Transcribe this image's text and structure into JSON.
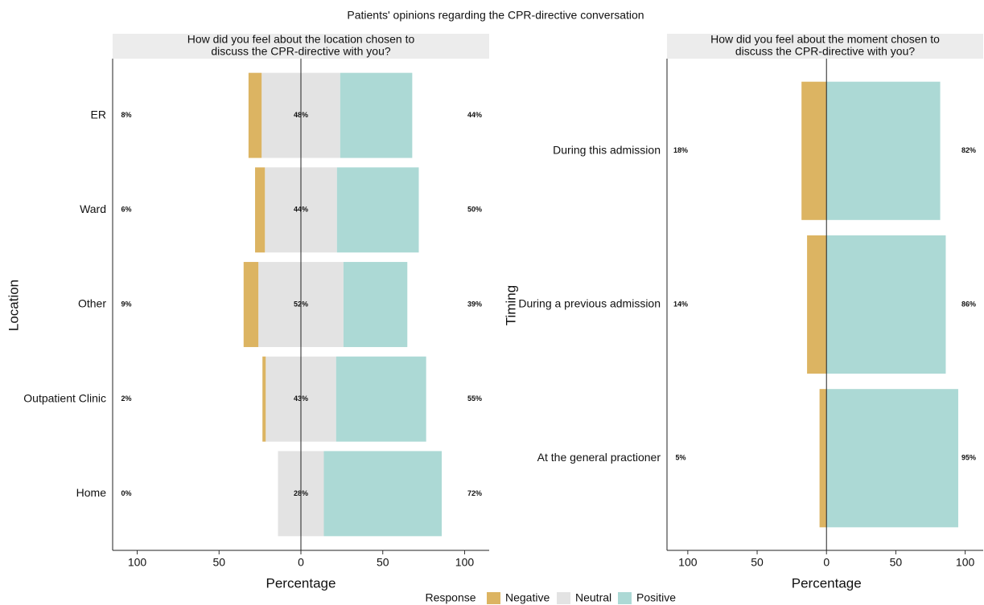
{
  "title": "Patients' opinions regarding the CPR-directive conversation",
  "legend_title": "Response",
  "chart_data": [
    {
      "type": "diverging_bar",
      "title": [
        "How did you feel about the location chosen to",
        "discuss the CPR-directive with you?"
      ],
      "x_label": "Percentage",
      "y_label": "Location",
      "categories": [
        "ER",
        "Ward",
        "Other",
        "Outpatient Clinic",
        "Home"
      ],
      "series": [
        {
          "name": "Negative",
          "color": "#dcb462",
          "values": [
            8,
            6,
            9,
            2,
            0
          ],
          "value_labels": [
            "8%",
            "6%",
            "9%",
            "2%",
            "0%"
          ]
        },
        {
          "name": "Neutral",
          "color": "#e3e3e3",
          "values": [
            48,
            44,
            52,
            43,
            28
          ],
          "value_labels": [
            "48%",
            "44%",
            "52%",
            "43%",
            "28%"
          ]
        },
        {
          "name": "Positive",
          "color": "#acd9d5",
          "values": [
            44,
            50,
            39,
            55,
            72
          ],
          "value_labels": [
            "44%",
            "50%",
            "39%",
            "55%",
            "72%"
          ]
        }
      ],
      "xlim": [
        -115,
        115
      ],
      "xticks": [
        {
          "value": -100,
          "label": "100"
        },
        {
          "value": -50,
          "label": "50"
        },
        0,
        50,
        100
      ]
    },
    {
      "type": "diverging_bar",
      "title": [
        "How did you feel about the moment chosen to",
        "discuss the CPR-directive with you?"
      ],
      "x_label": "Percentage",
      "y_label": "Timing",
      "categories": [
        "During this admission",
        "During a previous admission",
        "At the general practioner"
      ],
      "series": [
        {
          "color": "#dcb462",
          "values": [
            18,
            14,
            5
          ],
          "value_labels": [
            "18%",
            "14%",
            "5%"
          ]
        },
        {
          "color": "#acd9d5",
          "values": [
            82,
            86,
            95
          ],
          "value_labels": [
            "82%",
            "86%",
            "95%"
          ]
        }
      ],
      "xlim": [
        -115,
        113
      ],
      "xticks": [
        {
          "value": -100,
          "label": "100"
        },
        {
          "value": -50,
          "label": "50"
        },
        0,
        50,
        100
      ]
    }
  ]
}
